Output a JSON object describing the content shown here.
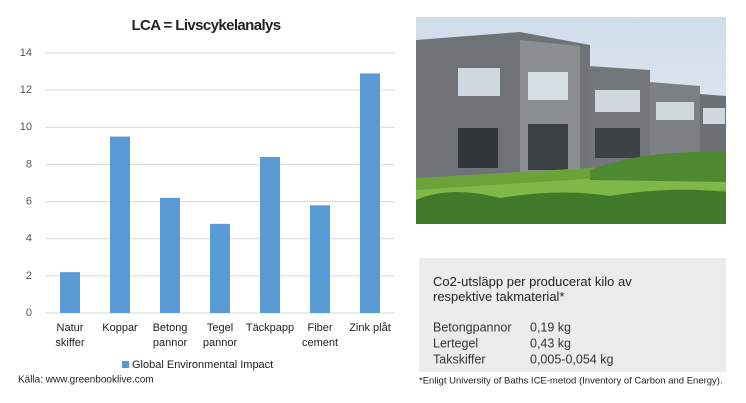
{
  "chart_data": {
    "type": "bar",
    "title": "LCA = Livscykelanalys",
    "categories": [
      "Natur\nskiffer",
      "Koppar",
      "Betong\npannor",
      "Tegel\npannor",
      "Täckpapp",
      "Fiber\ncement",
      "Zink plåt"
    ],
    "series": [
      {
        "name": "Global Environmental Impact",
        "color": "#5b9bd5",
        "values": [
          2.2,
          9.5,
          6.2,
          4.8,
          8.4,
          5.8,
          12.9
        ]
      }
    ],
    "ylim": [
      0,
      14
    ],
    "yticks": [
      0,
      2,
      4,
      6,
      8,
      10,
      12,
      14
    ],
    "grid": true,
    "legend": "bottom"
  },
  "source": "Källa: www.greenbooklive.com",
  "info_box": {
    "title": "Co2-utsläpp per producerat kilo av respektive takmaterial*",
    "rows": [
      [
        "Betongpannor",
        "0,19 kg"
      ],
      [
        "Lertegel",
        "0,43 kg"
      ],
      [
        "Takskiffer",
        "0,005-0,054 kg"
      ]
    ]
  },
  "footnote": "*Enligt University of Baths ICE-metod (Inventory of Carbon and Energy)."
}
